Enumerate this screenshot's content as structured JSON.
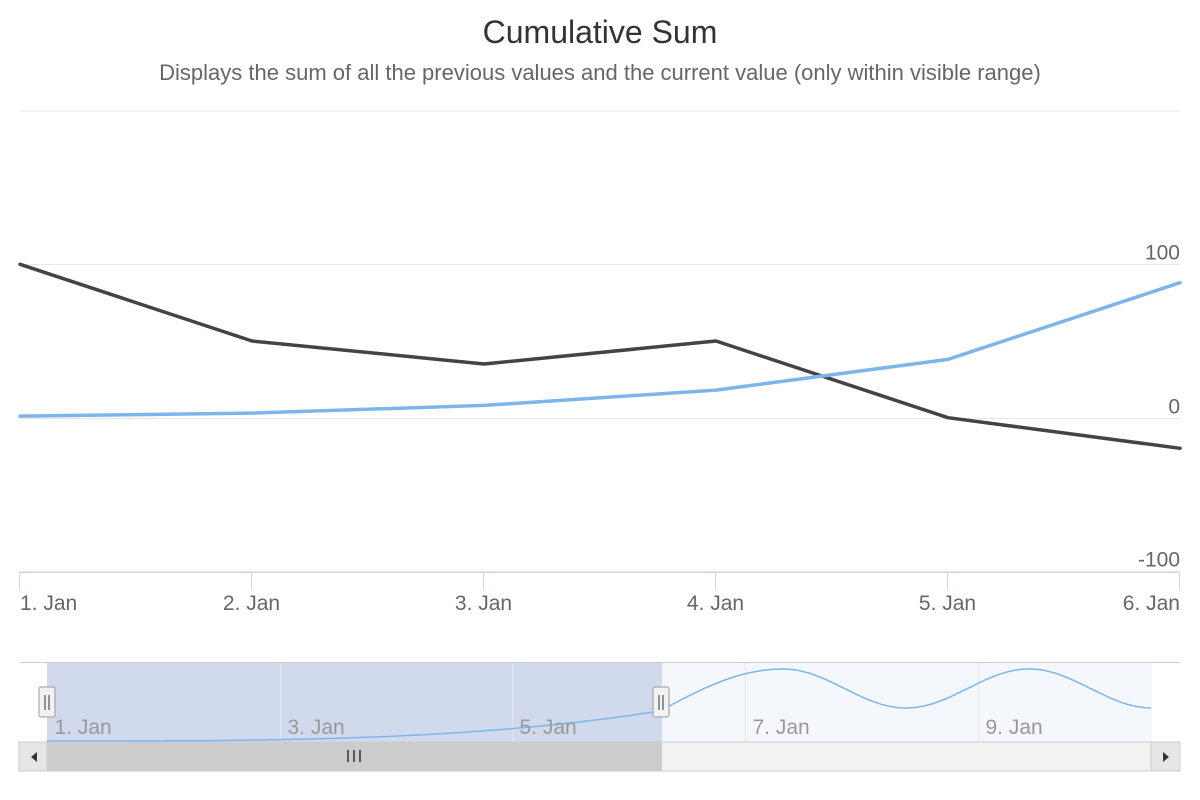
{
  "chart_data": {
    "type": "line",
    "title": "Cumulative Sum",
    "subtitle": "Displays the sum of all the previous values and the current value (only within visible range)",
    "x": [
      "1. Jan",
      "2. Jan",
      "3. Jan",
      "4. Jan",
      "5. Jan",
      "6. Jan"
    ],
    "series": [
      {
        "color": "#434348",
        "values": [
          100,
          50,
          35,
          50,
          0,
          -20
        ]
      },
      {
        "color": "#7cb5ec",
        "values": [
          1,
          3,
          8,
          18,
          38,
          88
        ]
      }
    ],
    "y_ticks": [
      -100,
      0,
      100
    ],
    "ylim": [
      -100,
      200
    ],
    "y_axis_position": "right",
    "grid": true,
    "navigator": {
      "x_ticks": [
        "1. Jan",
        "3. Jan",
        "5. Jan",
        "7. Jan",
        "9. Jan"
      ],
      "selected_range": [
        "1. Jan",
        "6. Jan"
      ],
      "color": "#7cb5ec",
      "selection_color": "#ccd6eb"
    }
  }
}
